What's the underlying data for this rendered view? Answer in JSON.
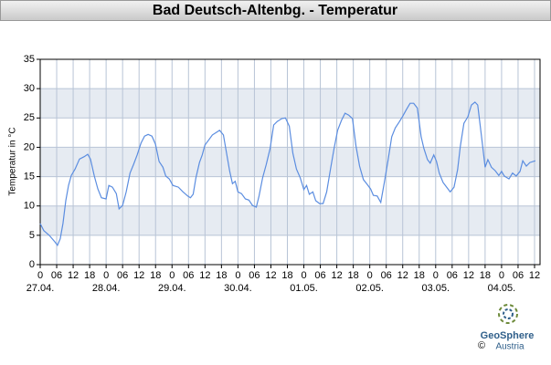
{
  "chart_data": {
    "type": "line",
    "title": "Bad Deutsch-Altenbg. - Temperatur",
    "ylabel": "Temperatur in °C",
    "x": [
      0,
      1.3,
      3.3,
      5.3,
      6.3,
      7.3,
      8.3,
      9.3,
      10.3,
      11.3,
      12.7,
      14.3,
      16,
      17.3,
      18.3,
      19.7,
      21,
      22.3,
      24,
      25,
      26.3,
      27.7,
      28.7,
      30,
      31.3,
      32.7,
      34,
      35.3,
      36.7,
      38,
      39.3,
      40.7,
      42,
      43.3,
      44.7,
      45.7,
      47,
      48.3,
      50.3,
      52,
      53.7,
      54.7,
      55.7,
      56.7,
      58,
      59,
      60,
      61.3,
      62.7,
      64.3,
      65.3,
      66.7,
      67.7,
      69,
      70,
      71,
      72,
      73.3,
      74.7,
      76,
      77.3,
      78.7,
      79.7,
      81,
      82.3,
      83.7,
      85,
      86.3,
      88,
      89.3,
      90.7,
      92,
      93.3,
      94.7,
      96,
      97,
      98,
      99.3,
      100.3,
      101.7,
      103,
      104.3,
      105.7,
      107,
      108.3,
      109.7,
      111,
      112.3,
      113.7,
      115,
      116.3,
      117.7,
      119,
      120.3,
      121.3,
      122.7,
      124,
      125.3,
      126.7,
      128,
      129.3,
      130.7,
      132,
      133.3,
      134.7,
      136,
      137.3,
      138.7,
      139.7,
      141,
      142,
      143.3,
      144.3,
      145.3,
      146.7,
      148,
      149.3,
      150.7,
      152,
      153,
      154.3,
      155.7,
      157,
      158.3,
      159.3,
      160.7,
      162,
      163,
      164.3,
      165.7,
      167,
      168,
      169,
      170.7,
      172,
      173.3,
      174.7,
      175.7,
      177,
      178.3,
      180.3
    ],
    "series": [
      {
        "name": "Temperatur",
        "color": "#5b8de0",
        "values": [
          7.0,
          5.8,
          5.0,
          3.9,
          3.3,
          4.4,
          7.0,
          10.9,
          13.5,
          15.2,
          16.3,
          18.0,
          18.4,
          18.8,
          18.0,
          15.1,
          12.9,
          11.4,
          11.2,
          13.5,
          13.2,
          12.1,
          9.5,
          10.1,
          12.4,
          15.6,
          17.1,
          18.7,
          20.7,
          21.9,
          22.2,
          21.9,
          20.5,
          17.6,
          16.6,
          15.1,
          14.6,
          13.5,
          13.2,
          12.4,
          11.7,
          11.4,
          12.0,
          14.8,
          17.4,
          18.7,
          20.4,
          21.2,
          22.1,
          22.6,
          22.9,
          22.1,
          19.4,
          15.9,
          13.8,
          14.2,
          12.4,
          12.1,
          11.2,
          11.0,
          10.1,
          9.8,
          11.7,
          14.8,
          17.1,
          19.8,
          23.8,
          24.4,
          24.9,
          25.0,
          23.6,
          19.0,
          16.3,
          14.8,
          12.8,
          13.5,
          12.0,
          12.4,
          10.9,
          10.4,
          10.4,
          12.4,
          16.3,
          19.8,
          22.9,
          24.6,
          25.8,
          25.5,
          24.9,
          20.2,
          16.8,
          14.5,
          13.7,
          12.9,
          11.8,
          11.7,
          10.6,
          14.0,
          17.9,
          21.8,
          23.3,
          24.3,
          25.3,
          26.4,
          27.5,
          27.5,
          26.7,
          21.8,
          19.8,
          17.9,
          17.3,
          18.7,
          17.6,
          15.6,
          14.0,
          13.2,
          12.4,
          13.2,
          16.2,
          20.2,
          24.1,
          25.2,
          27.2,
          27.7,
          27.2,
          21.8,
          16.6,
          17.9,
          16.6,
          16.0,
          15.2,
          15.9,
          15.1,
          14.6,
          15.6,
          15.1,
          15.9,
          17.7,
          16.8,
          17.4,
          17.7
        ]
      }
    ],
    "xlim": [
      0,
      182
    ],
    "xticks": [
      0,
      {
        "value": 6,
        "label": "06"
      },
      12,
      18,
      {
        "value": 24,
        "label": "0"
      },
      {
        "value": 30,
        "label": "06"
      },
      {
        "value": 36,
        "label": "12"
      },
      {
        "value": 42,
        "label": "18"
      },
      {
        "value": 48,
        "label": "0"
      },
      {
        "value": 54,
        "label": "06"
      },
      {
        "value": 60,
        "label": "12"
      },
      {
        "value": 66,
        "label": "18"
      },
      {
        "value": 72,
        "label": "0"
      },
      {
        "value": 78,
        "label": "06"
      },
      {
        "value": 84,
        "label": "12"
      },
      {
        "value": 90,
        "label": "18"
      },
      {
        "value": 96,
        "label": "0"
      },
      {
        "value": 102,
        "label": "06"
      },
      {
        "value": 108,
        "label": "12"
      },
      {
        "value": 114,
        "label": "18"
      },
      {
        "value": 120,
        "label": "0"
      },
      {
        "value": 126,
        "label": "06"
      },
      {
        "value": 132,
        "label": "12"
      },
      {
        "value": 138,
        "label": "18"
      },
      {
        "value": 144,
        "label": "0"
      },
      {
        "value": 150,
        "label": "06"
      },
      {
        "value": 156,
        "label": "12"
      },
      {
        "value": 162,
        "label": "18"
      },
      {
        "value": 168,
        "label": "0"
      },
      {
        "value": 174,
        "label": "06"
      },
      {
        "value": 180,
        "label": "12"
      }
    ],
    "x_date_labels": [
      {
        "value": 0,
        "label": "27.04."
      },
      {
        "value": 24,
        "label": "28.04."
      },
      {
        "value": 48,
        "label": "29.04."
      },
      {
        "value": 72,
        "label": "30.04."
      },
      {
        "value": 96,
        "label": "01.05."
      },
      {
        "value": 120,
        "label": "02.05."
      },
      {
        "value": 144,
        "label": "03.05."
      },
      {
        "value": 168,
        "label": "04.05."
      }
    ],
    "ylim": [
      0,
      35
    ],
    "yticks": [
      0,
      5,
      10,
      15,
      20,
      25,
      30,
      35
    ],
    "grid": true,
    "banded": true
  },
  "logo": {
    "copyright": "©",
    "name": "GeoSphere",
    "sub": "Austria"
  }
}
